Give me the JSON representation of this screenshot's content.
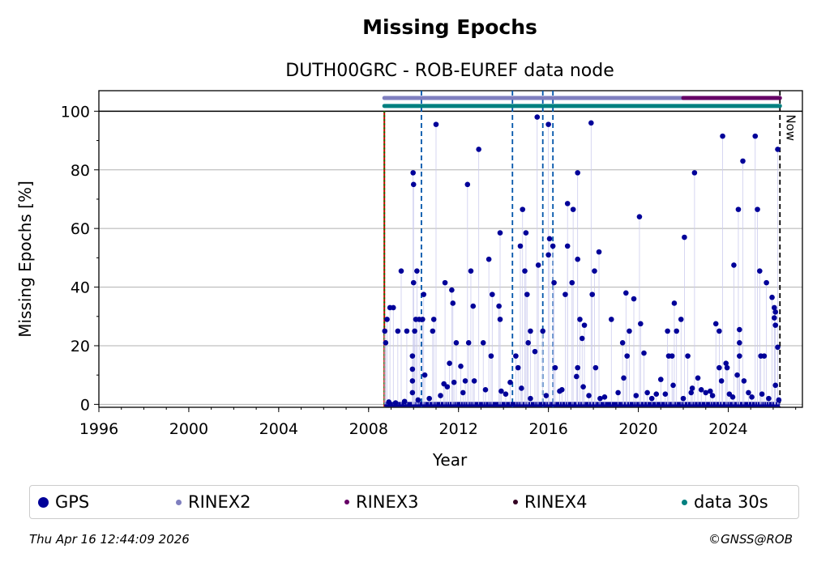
{
  "chart_data": {
    "type": "scatter",
    "title": "Missing Epochs",
    "subtitle": "DUTH00GRC - ROB-EUREF data node",
    "xlabel": "Year",
    "ylabel": "Missing Epochs [%]",
    "xlim": [
      1996,
      2027.3
    ],
    "ylim": [
      -1,
      107
    ],
    "xticks": [
      "1996",
      "2000",
      "2004",
      "2008",
      "2012",
      "2016",
      "2020",
      "2024"
    ],
    "yticks": [
      "0",
      "20",
      "40",
      "60",
      "80",
      "100"
    ],
    "grid": "horizontal",
    "now_label": "Now",
    "now_x": 2026.3,
    "start_x": 2008.7,
    "vlines": [
      2010.35,
      2014.4,
      2015.75,
      2016.2
    ],
    "availability_bars": [
      {
        "name": "RINEX2",
        "y": 104.5,
        "x": [
          2008.7,
          2022.0
        ],
        "color": "#7f7fbf"
      },
      {
        "name": "RINEX3",
        "y": 104.5,
        "x": [
          2022.0,
          2026.3
        ],
        "color": "#660066"
      },
      {
        "name": "data 30s",
        "y": 101.8,
        "x": [
          2008.7,
          2026.3
        ],
        "color": "#008080"
      }
    ],
    "series": [
      {
        "name": "GPS",
        "color": "#000099",
        "points": [
          [
            2008.72,
            25.0
          ],
          [
            2008.76,
            21.0
          ],
          [
            2008.82,
            29.0
          ],
          [
            2008.95,
            33.0
          ],
          [
            2009.1,
            33.0
          ],
          [
            2009.3,
            25.0
          ],
          [
            2009.45,
            45.5
          ],
          [
            2009.7,
            25.0
          ],
          [
            2009.95,
            8.0
          ],
          [
            2009.95,
            4.0
          ],
          [
            2009.95,
            12.0
          ],
          [
            2009.95,
            16.5
          ],
          [
            2009.98,
            79.0
          ],
          [
            2010.0,
            75.0
          ],
          [
            2010.05,
            25.0
          ],
          [
            2010.0,
            41.5
          ],
          [
            2010.1,
            29.0
          ],
          [
            2010.15,
            45.5
          ],
          [
            2010.25,
            29.0
          ],
          [
            2010.4,
            29.0
          ],
          [
            2010.45,
            37.5
          ],
          [
            2010.5,
            10.0
          ],
          [
            2010.85,
            25.0
          ],
          [
            2010.9,
            29.0
          ],
          [
            2011.0,
            95.5
          ],
          [
            2011.4,
            41.5
          ],
          [
            2011.7,
            39.0
          ],
          [
            2011.75,
            34.5
          ],
          [
            2011.9,
            21.0
          ],
          [
            2012.1,
            13.0
          ],
          [
            2011.6,
            14.0
          ],
          [
            2012.4,
            75.0
          ],
          [
            2012.55,
            45.5
          ],
          [
            2012.65,
            33.5
          ],
          [
            2012.45,
            21.0
          ],
          [
            2012.9,
            87.0
          ],
          [
            2013.1,
            21.0
          ],
          [
            2013.35,
            49.5
          ],
          [
            2013.45,
            16.5
          ],
          [
            2013.5,
            37.5
          ],
          [
            2013.85,
            58.5
          ],
          [
            2013.8,
            33.5
          ],
          [
            2013.85,
            29.0
          ],
          [
            2014.3,
            7.5
          ],
          [
            2014.55,
            16.5
          ],
          [
            2014.65,
            12.5
          ],
          [
            2014.75,
            54.0
          ],
          [
            2014.85,
            66.5
          ],
          [
            2015.0,
            58.5
          ],
          [
            2014.95,
            45.5
          ],
          [
            2015.05,
            37.5
          ],
          [
            2015.1,
            21.0
          ],
          [
            2015.2,
            25.0
          ],
          [
            2015.4,
            18.0
          ],
          [
            2015.5,
            98.0
          ],
          [
            2015.55,
            47.5
          ],
          [
            2015.75,
            25.0
          ],
          [
            2016.0,
            95.5
          ],
          [
            2016.05,
            56.5
          ],
          [
            2016.0,
            51.0
          ],
          [
            2016.2,
            54.0
          ],
          [
            2016.25,
            41.5
          ],
          [
            2016.3,
            12.5
          ],
          [
            2016.75,
            37.5
          ],
          [
            2016.85,
            54.0
          ],
          [
            2016.85,
            68.5
          ],
          [
            2017.1,
            66.5
          ],
          [
            2017.05,
            41.5
          ],
          [
            2017.3,
            79.0
          ],
          [
            2017.3,
            49.5
          ],
          [
            2017.4,
            29.0
          ],
          [
            2017.5,
            22.5
          ],
          [
            2017.6,
            27.0
          ],
          [
            2017.3,
            12.5
          ],
          [
            2017.25,
            9.5
          ],
          [
            2017.9,
            96.0
          ],
          [
            2018.05,
            45.5
          ],
          [
            2018.1,
            12.5
          ],
          [
            2018.25,
            52.0
          ],
          [
            2017.95,
            37.5
          ],
          [
            2018.8,
            29.0
          ],
          [
            2019.3,
            21.0
          ],
          [
            2019.45,
            38.0
          ],
          [
            2019.6,
            25.0
          ],
          [
            2019.8,
            36.0
          ],
          [
            2019.5,
            16.5
          ],
          [
            2020.05,
            64.0
          ],
          [
            2020.1,
            27.5
          ],
          [
            2020.25,
            17.5
          ],
          [
            2020.4,
            4.0
          ],
          [
            2021.0,
            8.5
          ],
          [
            2021.3,
            25.0
          ],
          [
            2021.35,
            16.5
          ],
          [
            2021.5,
            16.5
          ],
          [
            2021.6,
            34.5
          ],
          [
            2021.7,
            25.0
          ],
          [
            2021.9,
            29.0
          ],
          [
            2022.05,
            57.0
          ],
          [
            2022.2,
            16.5
          ],
          [
            2022.5,
            79.0
          ],
          [
            2022.65,
            9.0
          ],
          [
            2022.35,
            4.0
          ],
          [
            2023.0,
            4.0
          ],
          [
            2023.45,
            27.5
          ],
          [
            2023.6,
            25.0
          ],
          [
            2023.75,
            91.5
          ],
          [
            2023.6,
            12.5
          ],
          [
            2023.9,
            14.0
          ],
          [
            2023.7,
            8.0
          ],
          [
            2023.95,
            12.5
          ],
          [
            2024.25,
            47.5
          ],
          [
            2024.45,
            66.5
          ],
          [
            2024.5,
            25.5
          ],
          [
            2024.5,
            21.0
          ],
          [
            2024.5,
            16.5
          ],
          [
            2024.65,
            83.0
          ],
          [
            2024.7,
            8.0
          ],
          [
            2024.4,
            10.0
          ],
          [
            2025.2,
            91.5
          ],
          [
            2025.3,
            66.5
          ],
          [
            2025.4,
            45.5
          ],
          [
            2025.45,
            16.5
          ],
          [
            2025.6,
            16.5
          ],
          [
            2025.7,
            41.5
          ],
          [
            2025.95,
            36.5
          ],
          [
            2026.05,
            33.0
          ],
          [
            2026.1,
            31.5
          ],
          [
            2026.05,
            29.5
          ],
          [
            2026.1,
            27.0
          ],
          [
            2026.2,
            87.0
          ],
          [
            2026.2,
            19.5
          ],
          [
            2026.1,
            6.5
          ],
          [
            2026.25,
            1.5
          ],
          [
            2025.8,
            2.0
          ],
          [
            2025.5,
            3.5
          ],
          [
            2024.9,
            4.0
          ],
          [
            2024.2,
            2.5
          ],
          [
            2023.3,
            3.0
          ],
          [
            2022.8,
            5.0
          ],
          [
            2022.0,
            2.0
          ],
          [
            2021.2,
            3.5
          ],
          [
            2020.6,
            2.0
          ],
          [
            2019.9,
            3.0
          ],
          [
            2019.1,
            4.0
          ],
          [
            2018.5,
            2.5
          ],
          [
            2017.8,
            3.0
          ],
          [
            2016.5,
            4.5
          ],
          [
            2015.9,
            3.0
          ],
          [
            2015.2,
            2.0
          ],
          [
            2014.1,
            3.5
          ],
          [
            2013.2,
            5.0
          ],
          [
            2012.7,
            8.0
          ],
          [
            2012.2,
            4.0
          ],
          [
            2011.5,
            6.0
          ],
          [
            2011.2,
            3.0
          ],
          [
            2010.7,
            2.0
          ],
          [
            2010.2,
            1.5
          ],
          [
            2009.6,
            1.0
          ],
          [
            2009.2,
            0.5
          ],
          [
            2008.9,
            0.8
          ],
          [
            2012.3,
            8.0
          ],
          [
            2011.35,
            7.0
          ],
          [
            2011.8,
            7.5
          ],
          [
            2013.9,
            4.5
          ],
          [
            2014.8,
            5.5
          ],
          [
            2016.6,
            5.0
          ],
          [
            2017.55,
            6.0
          ],
          [
            2018.3,
            2.0
          ],
          [
            2019.35,
            9.0
          ],
          [
            2020.8,
            3.5
          ],
          [
            2021.55,
            6.5
          ],
          [
            2022.4,
            5.5
          ],
          [
            2023.2,
            4.5
          ],
          [
            2024.05,
            3.5
          ],
          [
            2025.05,
            2.5
          ]
        ]
      }
    ],
    "legend": {
      "placement": "bottom",
      "entries": [
        {
          "label": "GPS",
          "color": "#000099"
        },
        {
          "label": "RINEX2",
          "color": "#7f7fbf"
        },
        {
          "label": "RINEX3",
          "color": "#660066"
        },
        {
          "label": "RINEX4",
          "color": "#330022"
        },
        {
          "label": "data 30s",
          "color": "#008080"
        }
      ]
    }
  },
  "footer": {
    "timestamp": "Thu Apr 16 12:44:09 2026",
    "copyright": "©GNSS@ROB"
  }
}
